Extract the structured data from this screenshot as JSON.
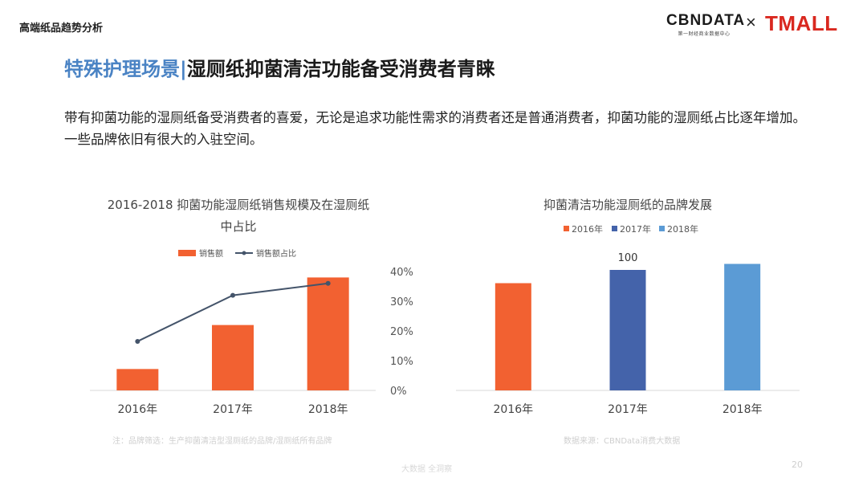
{
  "header": {
    "section_label": "高端纸品趋势分析"
  },
  "logos": {
    "cbndata": "CBNDATA",
    "cbndata_sub": "第一财经商业数据中心",
    "times": "×",
    "tmall": "TMALL"
  },
  "slide": {
    "title_part1": "特殊护理场景",
    "title_sep": "|",
    "title_part2": "湿厕纸抑菌清洁功能备受消费者青睐",
    "description": "带有抑菌功能的湿厕纸备受消费者的喜爱，无论是追求功能性需求的消费者还是普通消费者，抑菌功能的湿厕纸占比逐年增加。一些品牌依旧有很大的入驻空间。"
  },
  "chart_data": [
    {
      "type": "bar",
      "title_line1": "2016-2018 抑菌功能湿厕纸销售规模及在湿厕纸",
      "title_line2": "中占比",
      "categories": [
        "2016年",
        "2017年",
        "2018年"
      ],
      "series": [
        {
          "name": "销售额",
          "kind": "bar",
          "values": [
            18,
            55,
            95
          ],
          "color": "#f26131"
        },
        {
          "name": "销售额占比",
          "kind": "line",
          "axis": "right",
          "values": [
            16.5,
            32,
            36
          ],
          "color": "#44546a"
        }
      ],
      "y_left": {
        "max": 100,
        "hidden": true
      },
      "y_right": {
        "ticks": [
          "0%",
          "10%",
          "20%",
          "30%",
          "40%"
        ],
        "min": 0,
        "max": 40
      },
      "legend_position": "top-center",
      "footnote": "注：品牌筛选：生产抑菌清洁型湿厕纸的品牌/湿厕纸所有品牌"
    },
    {
      "type": "bar",
      "title": "抑菌清洁功能湿厕纸的品牌发展",
      "categories": [
        "2016年",
        "2017年",
        "2018年"
      ],
      "values": [
        89,
        100,
        105
      ],
      "colors": [
        "#f26131",
        "#4463aa",
        "#5b9bd5"
      ],
      "legend": [
        "2016年",
        "2017年",
        "2018年"
      ],
      "data_labels": [
        "",
        "100",
        ""
      ],
      "ylim": [
        0,
        120
      ],
      "legend_position": "top-center",
      "footnote": "数据来源：CBNData消费大数据"
    }
  ],
  "footer": {
    "watermark": "大数据   全洞察",
    "page_number": "20"
  }
}
